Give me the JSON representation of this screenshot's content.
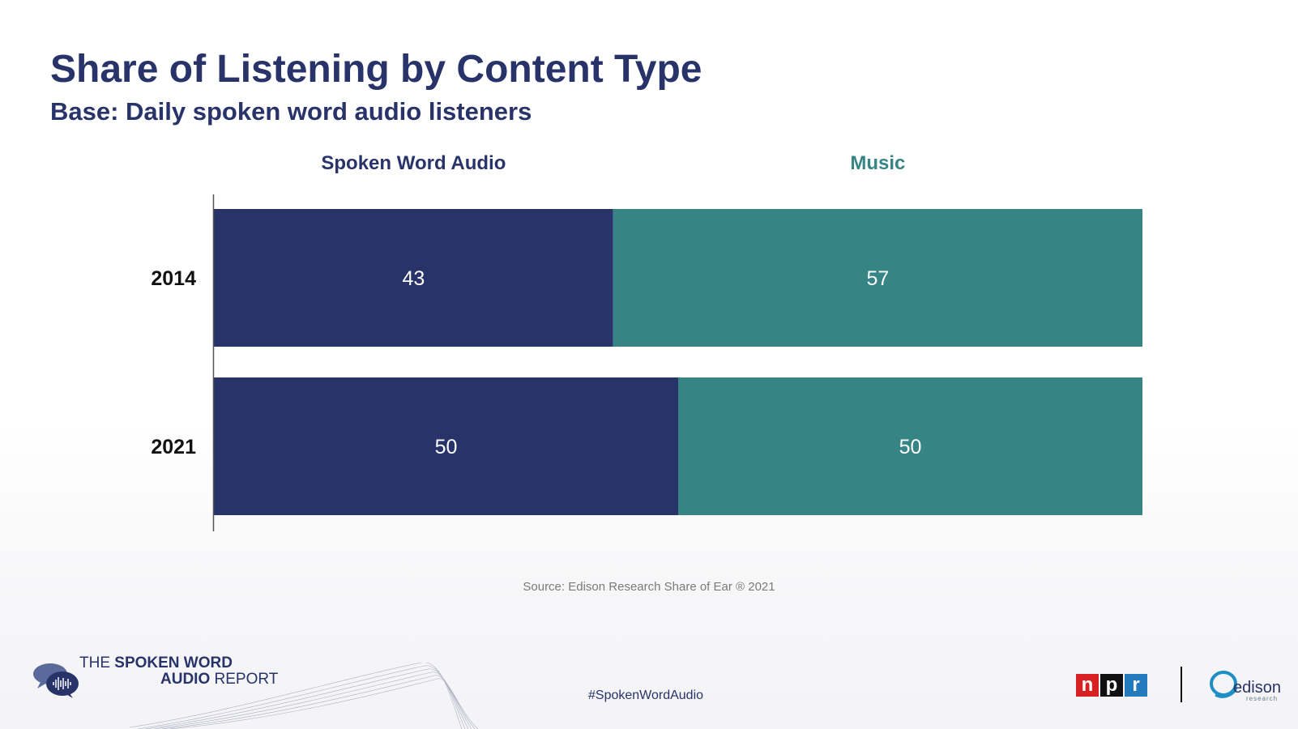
{
  "header": {
    "title": "Share of Listening by Content Type",
    "subtitle": "Base: Daily spoken word audio listeners"
  },
  "chart_data": {
    "type": "bar",
    "orientation": "horizontal",
    "stacked": true,
    "categories": [
      "2014",
      "2021"
    ],
    "series": [
      {
        "name": "Spoken Word Audio",
        "values": [
          43,
          50
        ],
        "color": "#283369"
      },
      {
        "name": "Music",
        "values": [
          57,
          50
        ],
        "color": "#368584"
      }
    ],
    "xlim": [
      0,
      100
    ],
    "data_labels": true,
    "legend_position": "top",
    "grid": false
  },
  "footer": {
    "source": "Source: Edison Research Share of Ear ® 2021",
    "hashtag": "#SpokenWordAudio",
    "report_logo_line1_plain": "THE ",
    "report_logo_line1_bold": "SPOKEN WORD",
    "report_logo_line2_bold": "AUDIO",
    "report_logo_line2_plain": " REPORT",
    "npr_letters": [
      "n",
      "p",
      "r"
    ],
    "npr_colors": [
      "#d62021",
      "#111111",
      "#237bbd"
    ],
    "edison_word": "edison",
    "edison_sub": "research"
  }
}
